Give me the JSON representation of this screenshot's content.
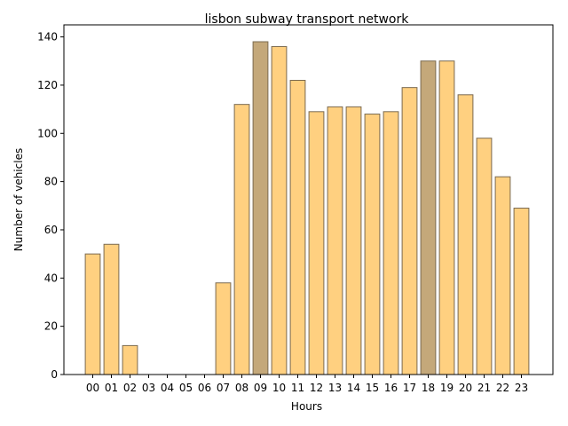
{
  "chart_data": {
    "type": "bar",
    "title": "lisbon subway transport network",
    "xlabel": "Hours",
    "ylabel": "Number of vehicles",
    "categories": [
      "00",
      "01",
      "02",
      "03",
      "04",
      "05",
      "06",
      "07",
      "08",
      "09",
      "10",
      "11",
      "12",
      "13",
      "14",
      "15",
      "16",
      "17",
      "18",
      "19",
      "20",
      "21",
      "22",
      "23"
    ],
    "values": [
      50,
      54,
      12,
      0,
      0,
      0,
      0,
      38,
      112,
      138,
      136,
      122,
      109,
      111,
      111,
      108,
      109,
      119,
      130,
      130,
      116,
      98,
      82,
      69
    ],
    "highlighted": [
      "09",
      "18"
    ],
    "ylim": [
      0,
      145
    ],
    "yticks": [
      0,
      20,
      40,
      60,
      80,
      100,
      120,
      140
    ],
    "colors": {
      "bar": "#ffd080",
      "bar_highlight": "#c4a87a",
      "bar_edge": "#7a6a50"
    },
    "grid": false,
    "legend": "none"
  }
}
